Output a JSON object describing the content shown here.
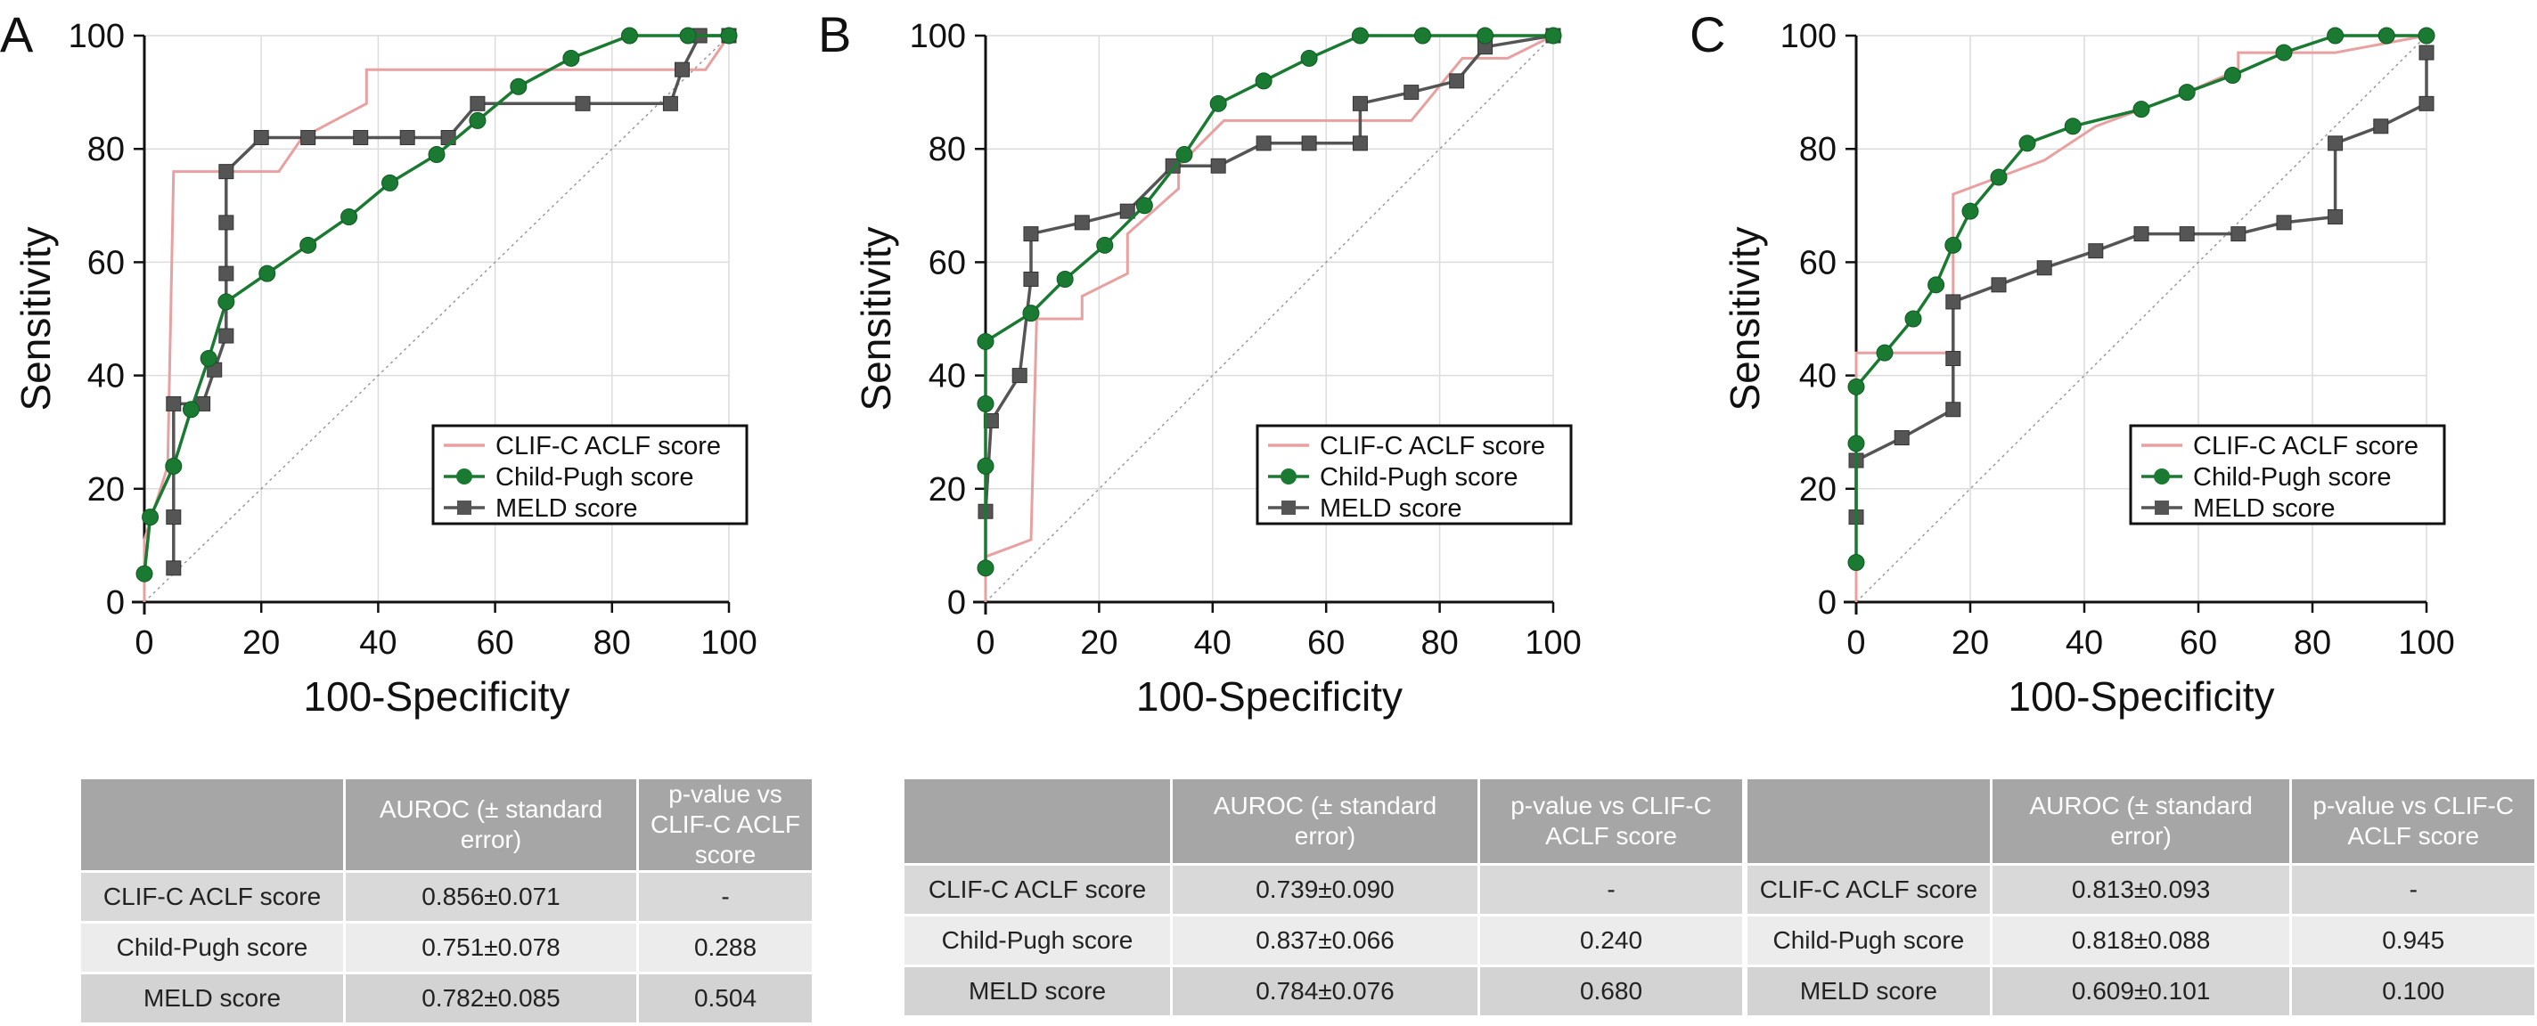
{
  "chart_data": [
    {
      "panel_label": "A",
      "type": "line",
      "xlabel": "100-Specificity",
      "ylabel": "Sensitivity",
      "xlim": [
        0,
        100
      ],
      "ylim": [
        0,
        100
      ],
      "xticks": [
        0,
        20,
        40,
        60,
        80,
        100
      ],
      "yticks": [
        0,
        20,
        40,
        60,
        80,
        100
      ],
      "grid": true,
      "legend_position": "bottom-right",
      "reference_line": true,
      "series": [
        {
          "name": "CLIF-C ACLF score",
          "color": "#e8a0a0",
          "marker": "none",
          "points": [
            [
              0,
              0
            ],
            [
              0,
              11
            ],
            [
              4,
              24
            ],
            [
              5,
              76
            ],
            [
              23,
              76
            ],
            [
              27,
              82
            ],
            [
              38,
              88
            ],
            [
              38,
              94
            ],
            [
              90,
              94
            ],
            [
              96,
              94
            ],
            [
              100,
              100
            ]
          ]
        },
        {
          "name": "Child-Pugh score",
          "color": "#1a7a32",
          "marker": "circle",
          "points": [
            [
              0,
              5
            ],
            [
              1,
              15
            ],
            [
              5,
              24
            ],
            [
              8,
              34
            ],
            [
              11,
              43
            ],
            [
              14,
              53
            ],
            [
              21,
              58
            ],
            [
              28,
              63
            ],
            [
              35,
              68
            ],
            [
              42,
              74
            ],
            [
              50,
              79
            ],
            [
              57,
              85
            ],
            [
              64,
              91
            ],
            [
              73,
              96
            ],
            [
              83,
              100
            ],
            [
              93,
              100
            ],
            [
              100,
              100
            ]
          ]
        },
        {
          "name": "MELD score",
          "color": "#555555",
          "marker": "square",
          "points": [
            [
              5,
              6
            ],
            [
              5,
              15
            ],
            [
              5,
              35
            ],
            [
              10,
              35
            ],
            [
              12,
              41
            ],
            [
              14,
              47
            ],
            [
              14,
              58
            ],
            [
              14,
              67
            ],
            [
              14,
              76
            ],
            [
              20,
              82
            ],
            [
              28,
              82
            ],
            [
              37,
              82
            ],
            [
              45,
              82
            ],
            [
              52,
              82
            ],
            [
              57,
              88
            ],
            [
              75,
              88
            ],
            [
              90,
              88
            ],
            [
              92,
              94
            ],
            [
              95,
              100
            ],
            [
              100,
              100
            ]
          ]
        }
      ],
      "table": {
        "headers": [
          "",
          "AUROC (± standard error)",
          "p-value vs CLIF-C ACLF score"
        ],
        "rows": [
          [
            "CLIF-C ACLF score",
            "0.856±0.071",
            "-"
          ],
          [
            "Child-Pugh score",
            "0.751±0.078",
            "0.288"
          ],
          [
            "MELD score",
            "0.782±0.085",
            "0.504"
          ]
        ]
      }
    },
    {
      "panel_label": "B",
      "type": "line",
      "xlabel": "100-Specificity",
      "ylabel": "Sensitivity",
      "xlim": [
        0,
        100
      ],
      "ylim": [
        0,
        100
      ],
      "xticks": [
        0,
        20,
        40,
        60,
        80,
        100
      ],
      "yticks": [
        0,
        20,
        40,
        60,
        80,
        100
      ],
      "grid": true,
      "legend_position": "bottom-right",
      "reference_line": true,
      "series": [
        {
          "name": "CLIF-C ACLF score",
          "color": "#e8a0a0",
          "marker": "none",
          "points": [
            [
              0,
              0
            ],
            [
              0,
              8
            ],
            [
              8,
              11
            ],
            [
              9,
              50
            ],
            [
              17,
              50
            ],
            [
              17,
              54
            ],
            [
              25,
              58
            ],
            [
              25,
              65
            ],
            [
              34,
              73
            ],
            [
              34,
              77
            ],
            [
              42,
              85
            ],
            [
              75,
              85
            ],
            [
              84,
              96
            ],
            [
              92,
              96
            ],
            [
              100,
              100
            ]
          ]
        },
        {
          "name": "Child-Pugh score",
          "color": "#1a7a32",
          "marker": "circle",
          "points": [
            [
              0,
              6
            ],
            [
              0,
              24
            ],
            [
              0,
              35
            ],
            [
              0,
              46
            ],
            [
              8,
              51
            ],
            [
              14,
              57
            ],
            [
              21,
              63
            ],
            [
              28,
              70
            ],
            [
              35,
              79
            ],
            [
              41,
              88
            ],
            [
              49,
              92
            ],
            [
              57,
              96
            ],
            [
              66,
              100
            ],
            [
              77,
              100
            ],
            [
              88,
              100
            ],
            [
              100,
              100
            ]
          ]
        },
        {
          "name": "MELD score",
          "color": "#555555",
          "marker": "square",
          "points": [
            [
              0,
              16
            ],
            [
              1,
              32
            ],
            [
              6,
              40
            ],
            [
              8,
              57
            ],
            [
              8,
              65
            ],
            [
              17,
              67
            ],
            [
              25,
              69
            ],
            [
              33,
              77
            ],
            [
              41,
              77
            ],
            [
              49,
              81
            ],
            [
              57,
              81
            ],
            [
              66,
              81
            ],
            [
              66,
              88
            ],
            [
              75,
              90
            ],
            [
              83,
              92
            ],
            [
              88,
              98
            ],
            [
              100,
              100
            ]
          ]
        }
      ],
      "table": {
        "headers": [
          "",
          "AUROC (± standard error)",
          "p-value vs CLIF-C ACLF score"
        ],
        "rows": [
          [
            "CLIF-C ACLF score",
            "0.739±0.090",
            "-"
          ],
          [
            "Child-Pugh score",
            "0.837±0.066",
            "0.240"
          ],
          [
            "MELD score",
            "0.784±0.076",
            "0.680"
          ]
        ]
      }
    },
    {
      "panel_label": "C",
      "type": "line",
      "xlabel": "100-Specificity",
      "ylabel": "Sensitivity",
      "xlim": [
        0,
        100
      ],
      "ylim": [
        0,
        100
      ],
      "xticks": [
        0,
        20,
        40,
        60,
        80,
        100
      ],
      "yticks": [
        0,
        20,
        40,
        60,
        80,
        100
      ],
      "grid": true,
      "legend_position": "bottom-right",
      "reference_line": true,
      "series": [
        {
          "name": "CLIF-C ACLF score",
          "color": "#e8a0a0",
          "marker": "none",
          "points": [
            [
              0,
              0
            ],
            [
              0,
              44
            ],
            [
              17,
              44
            ],
            [
              17,
              72
            ],
            [
              25,
              75
            ],
            [
              33,
              78
            ],
            [
              42,
              84
            ],
            [
              58,
              90
            ],
            [
              67,
              94
            ],
            [
              67,
              97
            ],
            [
              84,
              97
            ],
            [
              100,
              100
            ]
          ]
        },
        {
          "name": "Child-Pugh score",
          "color": "#1a7a32",
          "marker": "circle",
          "points": [
            [
              0,
              7
            ],
            [
              0,
              28
            ],
            [
              0,
              38
            ],
            [
              5,
              44
            ],
            [
              10,
              50
            ],
            [
              14,
              56
            ],
            [
              17,
              63
            ],
            [
              20,
              69
            ],
            [
              25,
              75
            ],
            [
              30,
              81
            ],
            [
              38,
              84
            ],
            [
              50,
              87
            ],
            [
              58,
              90
            ],
            [
              66,
              93
            ],
            [
              75,
              97
            ],
            [
              84,
              100
            ],
            [
              93,
              100
            ],
            [
              100,
              100
            ]
          ]
        },
        {
          "name": "MELD score",
          "color": "#555555",
          "marker": "square",
          "points": [
            [
              0,
              15
            ],
            [
              0,
              25
            ],
            [
              8,
              29
            ],
            [
              17,
              34
            ],
            [
              17,
              43
            ],
            [
              17,
              53
            ],
            [
              25,
              56
            ],
            [
              33,
              59
            ],
            [
              42,
              62
            ],
            [
              50,
              65
            ],
            [
              58,
              65
            ],
            [
              67,
              65
            ],
            [
              75,
              67
            ],
            [
              84,
              68
            ],
            [
              84,
              81
            ],
            [
              92,
              84
            ],
            [
              100,
              88
            ],
            [
              100,
              97
            ]
          ]
        }
      ],
      "table": {
        "headers": [
          "",
          "AUROC (± standard error)",
          "p-value vs CLIF-C ACLF score"
        ],
        "rows": [
          [
            "CLIF-C ACLF score",
            "0.813±0.093",
            "-"
          ],
          [
            "Child-Pugh score",
            "0.818±0.088",
            "0.945"
          ],
          [
            "MELD score",
            "0.609±0.101",
            "0.100"
          ]
        ]
      }
    }
  ]
}
